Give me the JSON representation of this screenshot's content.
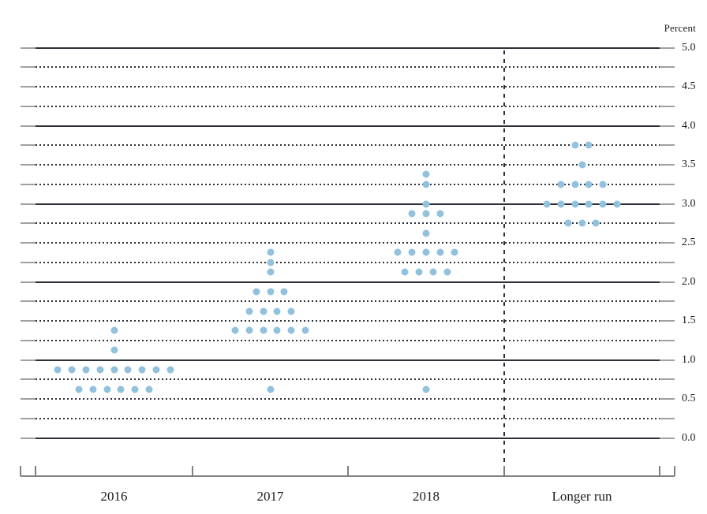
{
  "unit_label": "Percent",
  "chart_data": {
    "type": "scatter",
    "subtype": "fomc-dot-plot",
    "title": "Percent",
    "categories": [
      "2016",
      "2017",
      "2018",
      "Longer run"
    ],
    "ylim": [
      0.0,
      5.0
    ],
    "y_axis": {
      "unit": "Percent",
      "tick_labels": [
        "5.0",
        "4.5",
        "4.0",
        "3.5",
        "3.0",
        "2.5",
        "2.0",
        "1.5",
        "1.0",
        "0.5",
        "0.0"
      ],
      "label_step": 0.5,
      "gridline_step": 0.25,
      "solid_gridlines_at": [
        0.0,
        1.0,
        2.0,
        3.0,
        4.0,
        5.0
      ],
      "dotted_gridlines_at_quarter_points": true
    },
    "legend": "none",
    "grid": "on",
    "series": [
      {
        "name": "2016",
        "points": [
          {
            "value": 1.375,
            "count": 1
          },
          {
            "value": 1.125,
            "count": 1
          },
          {
            "value": 0.875,
            "count": 9
          },
          {
            "value": 0.625,
            "count": 6
          }
        ]
      },
      {
        "name": "2017",
        "points": [
          {
            "value": 2.375,
            "count": 1
          },
          {
            "value": 2.25,
            "count": 1
          },
          {
            "value": 2.125,
            "count": 1
          },
          {
            "value": 1.875,
            "count": 3
          },
          {
            "value": 1.625,
            "count": 4
          },
          {
            "value": 1.375,
            "count": 6
          },
          {
            "value": 0.625,
            "count": 1
          }
        ]
      },
      {
        "name": "2018",
        "points": [
          {
            "value": 3.375,
            "count": 1
          },
          {
            "value": 3.25,
            "count": 1
          },
          {
            "value": 3.0,
            "count": 1
          },
          {
            "value": 2.875,
            "count": 3
          },
          {
            "value": 2.625,
            "count": 1
          },
          {
            "value": 2.375,
            "count": 5
          },
          {
            "value": 2.125,
            "count": 4
          },
          {
            "value": 0.625,
            "count": 1
          }
        ]
      },
      {
        "name": "Longer run",
        "points": [
          {
            "value": 3.75,
            "count": 2
          },
          {
            "value": 3.5,
            "count": 1
          },
          {
            "value": 3.25,
            "count": 4
          },
          {
            "value": 3.0,
            "count": 6
          },
          {
            "value": 2.75,
            "count": 3
          }
        ]
      }
    ],
    "colors": {
      "dot": "#92c1dd",
      "gridline_dark": "#2f2f37",
      "gridline_end_cap": "#a0a0a0",
      "bottom_axis": "#808080",
      "text": "#1c1c1c"
    }
  }
}
